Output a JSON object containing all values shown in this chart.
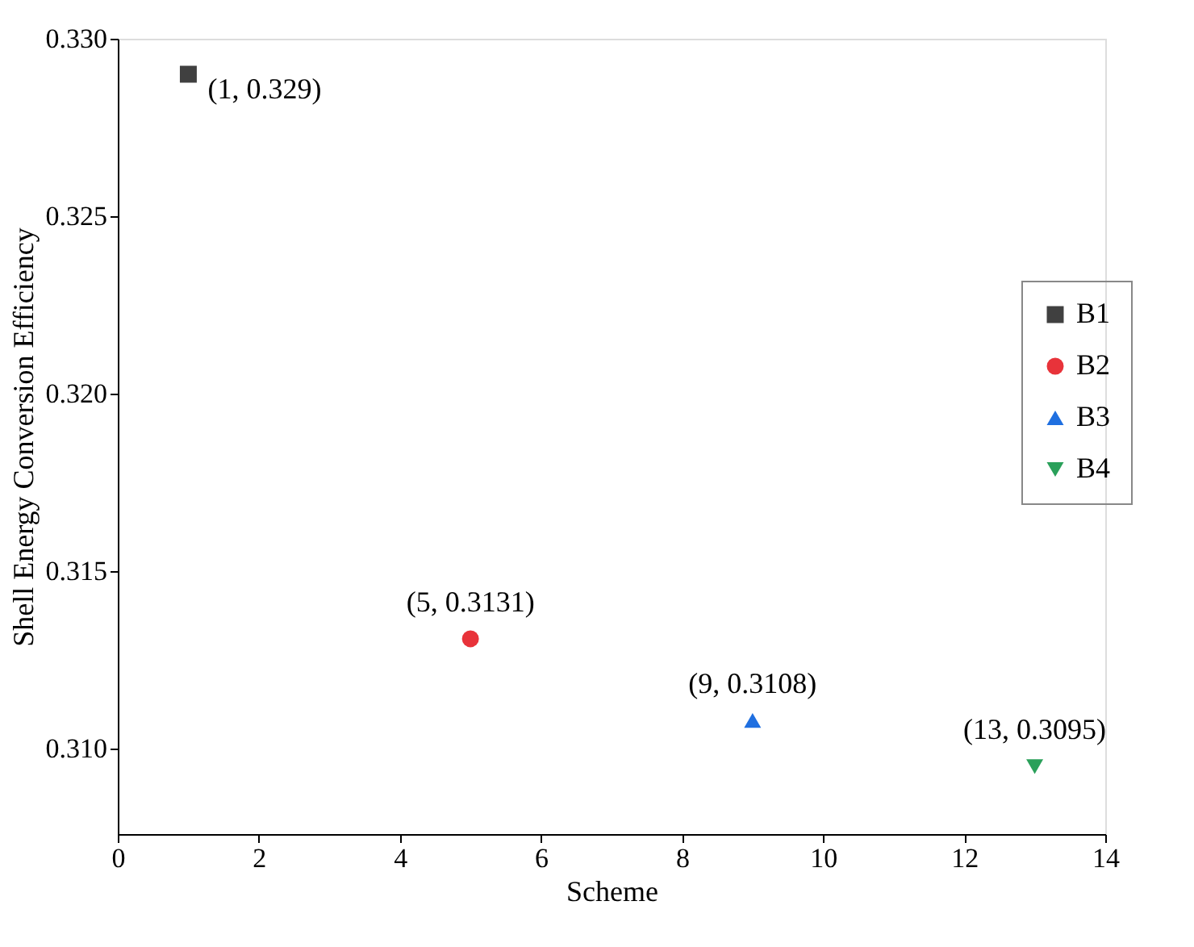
{
  "chart_data": {
    "type": "scatter",
    "xlabel": "Scheme",
    "ylabel": "Shell Energy Conversion Efficiency",
    "xlim": [
      0,
      14
    ],
    "xticks": [
      0,
      2,
      4,
      6,
      8,
      10,
      12,
      14
    ],
    "ylim": [
      0.3076,
      0.33
    ],
    "yticks": [
      {
        "value": 0.31,
        "label": "0.310"
      },
      0.315,
      {
        "value": 0.32,
        "label": "0.320"
      },
      0.325,
      {
        "value": 0.33,
        "label": "0.330"
      }
    ],
    "series": [
      {
        "name": "B1",
        "color": "#404040",
        "marker": "square",
        "x": [
          1
        ],
        "values": [
          0.329
        ]
      },
      {
        "name": "B2",
        "color": "#e8333a",
        "marker": "circle",
        "x": [
          5
        ],
        "values": [
          0.3131
        ]
      },
      {
        "name": "B3",
        "color": "#1f6fe0",
        "marker": "triangle",
        "x": [
          9
        ],
        "values": [
          0.3108
        ]
      },
      {
        "name": "B4",
        "color": "#2aa05a",
        "marker": "triangle-down",
        "x": [
          13
        ],
        "values": [
          0.3095
        ]
      }
    ],
    "annotations": [
      {
        "text": "(1, 0.329)",
        "x": 1,
        "y": 0.329
      },
      {
        "text": "(5, 0.3131)",
        "x": 5,
        "y": 0.3131
      },
      {
        "text": "(9, 0.3108)",
        "x": 9,
        "y": 0.3108
      },
      {
        "text": "(13, 0.3095)",
        "x": 13,
        "y": 0.3095
      }
    ],
    "legend": "right",
    "grid": false
  }
}
